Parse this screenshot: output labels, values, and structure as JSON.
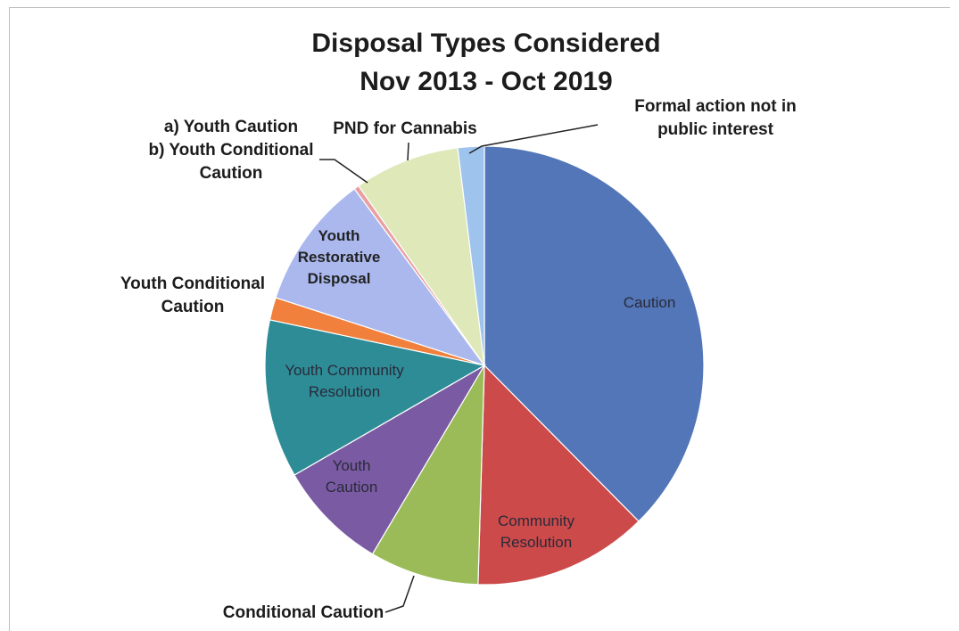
{
  "chart_data": {
    "type": "pie",
    "title_lines": [
      "Disposal Types Considered",
      "Nov 2013 - Oct 2019"
    ],
    "legend": "none",
    "slices": [
      {
        "label": "Caution",
        "value": 40.6,
        "color": "#5276b8",
        "label_mode": "inside"
      },
      {
        "label": "Community Resolution",
        "value": 13.9,
        "color": "#cc4a4a",
        "label_mode": "inside"
      },
      {
        "label": "Conditional Caution",
        "value": 8.7,
        "color": "#9bbb59",
        "label_mode": "outside"
      },
      {
        "label": "Youth Caution",
        "value": 8.8,
        "color": "#7a5ba3",
        "label_mode": "inside"
      },
      {
        "label": "Youth Community Resolution",
        "value": 12.6,
        "color": "#2e8c96",
        "label_mode": "inside"
      },
      {
        "label": "Youth Conditional Caution",
        "value": 1.8,
        "color": "#f0803c",
        "label_mode": "outside"
      },
      {
        "label": "Youth Restorative Disposal",
        "value": 10.7,
        "color": "#aab8ee",
        "label_mode": "inside"
      },
      {
        "label": "a) Youth Caution b) Youth Conditional Caution",
        "value": 0.4,
        "color": "#e8a0a0",
        "label_mode": "outside"
      },
      {
        "label": "PND for Cannabis",
        "value": 8.4,
        "color": "#dfe8b8",
        "label_mode": "outside"
      },
      {
        "label": "Formal action not in public interest",
        "value": 2.1,
        "color": "#9ec4ee",
        "label_mode": "outside"
      }
    ]
  }
}
